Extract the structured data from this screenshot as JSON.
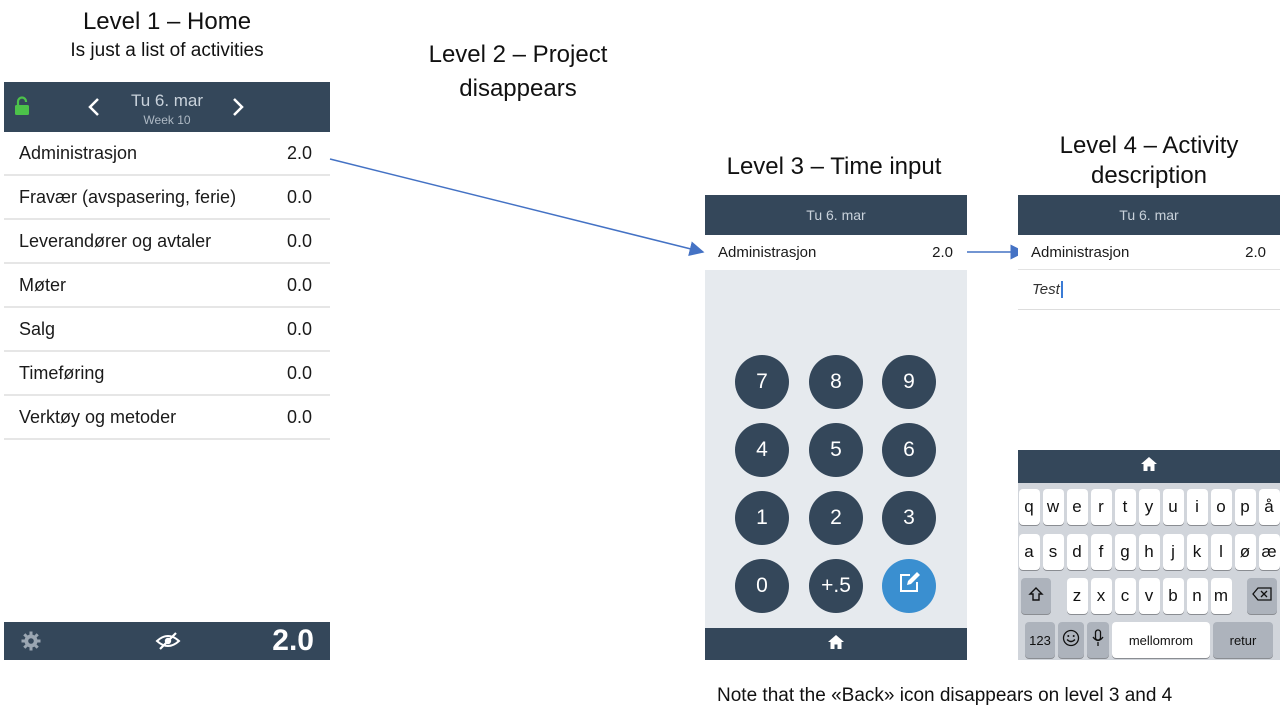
{
  "headings": {
    "level1_title": "Level 1 – Home",
    "level1_sub": "Is just a list of activities",
    "level2_line1": "Level 2 – Project",
    "level2_line2": "disappears",
    "level3_title": "Level 3 – Time input",
    "level4_line1": "Level 4 – Activity",
    "level4_line2": "description"
  },
  "note": "Note that the «Back» icon disappears on level 3 and 4",
  "home": {
    "date": "Tu 6. mar",
    "week": "Week 10",
    "activities": [
      {
        "label": "Administrasjon",
        "value": "2.0"
      },
      {
        "label": "Fravær (avspasering, ferie)",
        "value": "0.0"
      },
      {
        "label": "Leverandører og avtaler",
        "value": "0.0"
      },
      {
        "label": "Møter",
        "value": "0.0"
      },
      {
        "label": "Salg",
        "value": "0.0"
      },
      {
        "label": "Timeføring",
        "value": "0.0"
      },
      {
        "label": "Verktøy og metoder",
        "value": "0.0"
      }
    ],
    "total": "2.0",
    "icons": [
      "unlock-icon",
      "chevron-left-icon",
      "chevron-right-icon",
      "gear-icon",
      "eye-slash-icon"
    ]
  },
  "time_input": {
    "date": "Tu 6. mar",
    "activity": "Administrasjon",
    "value": "2.0",
    "keys": [
      "7",
      "8",
      "9",
      "4",
      "5",
      "6",
      "1",
      "2",
      "3",
      "0",
      "+.5"
    ]
  },
  "description": {
    "date": "Tu 6. mar",
    "activity": "Administrasjon",
    "value": "2.0",
    "text": "Test"
  },
  "keyboard": {
    "row1": [
      "q",
      "w",
      "e",
      "r",
      "t",
      "y",
      "u",
      "i",
      "o",
      "p",
      "å"
    ],
    "row2": [
      "a",
      "s",
      "d",
      "f",
      "g",
      "h",
      "j",
      "k",
      "l",
      "ø",
      "æ"
    ],
    "row3": [
      "z",
      "x",
      "c",
      "v",
      "b",
      "n",
      "m"
    ],
    "numbers_label": "123",
    "space_label": "mellomrom",
    "return_label": "retur"
  },
  "colors": {
    "bar": "#34475a",
    "accent_green": "#4cc24a",
    "edit_blue": "#3a8fd0",
    "arrow_blue": "#4472c4"
  }
}
